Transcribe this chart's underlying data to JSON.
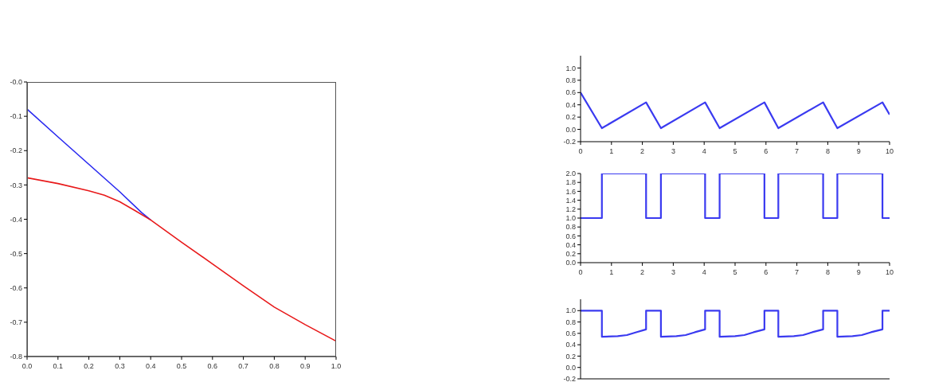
{
  "chart_data": [
    {
      "type": "line",
      "xlim": [
        0,
        1
      ],
      "xticks": [
        {
          "value": 0,
          "label": "0.0"
        },
        0.1,
        0.2,
        0.3,
        0.4,
        0.5,
        0.6,
        0.7,
        0.8,
        0.9,
        {
          "value": 1,
          "label": "1.0"
        }
      ],
      "ylim": [
        -0.8,
        0
      ],
      "yticks": [
        -0.8,
        -0.7,
        -0.6,
        -0.5,
        -0.4,
        -0.3,
        -0.2,
        -0.1,
        {
          "value": 0,
          "label": "-0.0"
        }
      ],
      "series": [
        {
          "color": "#2a2af0",
          "x": [
            0,
            0.1,
            0.2,
            0.3,
            0.37,
            0.4
          ],
          "values": [
            -0.079,
            -0.16,
            -0.24,
            -0.32,
            -0.38,
            -0.402
          ]
        },
        {
          "color": "#e8191a",
          "x": [
            0,
            0.1,
            0.2,
            0.25,
            0.3,
            0.35,
            0.4,
            0.5,
            0.6,
            0.7,
            0.8,
            0.9,
            1
          ],
          "values": [
            -0.279,
            -0.296,
            -0.317,
            -0.33,
            -0.349,
            -0.375,
            -0.402,
            -0.467,
            -0.53,
            -0.594,
            -0.656,
            -0.707,
            -0.755
          ]
        }
      ]
    },
    {
      "type": "line",
      "xlim": [
        0,
        10
      ],
      "xticks": [
        0,
        1,
        2,
        3,
        4,
        5,
        6,
        7,
        8,
        9,
        10
      ],
      "ylim": [
        -0.2,
        1.2
      ],
      "yticks": [
        -0.2,
        {
          "value": 0,
          "label": "0.0"
        },
        0.2,
        0.4,
        0.6,
        0.8,
        {
          "value": 1,
          "label": "1.0"
        }
      ],
      "series": [
        {
          "color": "#3a3af0",
          "x": [
            0,
            0.69,
            2.12,
            2.6,
            4.03,
            4.5,
            5.95,
            6.4,
            7.85,
            8.31,
            9.77,
            10
          ],
          "values": [
            0.6,
            0.02,
            0.44,
            0.02,
            0.44,
            0.02,
            0.44,
            0.02,
            0.44,
            0.02,
            0.44,
            0.24
          ]
        }
      ]
    },
    {
      "type": "step",
      "xlim": [
        0,
        10
      ],
      "xticks": [
        0,
        1,
        2,
        3,
        4,
        5,
        6,
        7,
        8,
        9,
        10
      ],
      "ylim": [
        0,
        2
      ],
      "yticks": [
        {
          "value": 0,
          "label": "0.0"
        },
        0.2,
        0.4,
        0.6,
        0.8,
        {
          "value": 1,
          "label": "1.0"
        },
        1.2,
        1.4,
        1.6,
        1.8,
        {
          "value": 2,
          "label": "2.0"
        }
      ],
      "series": [
        {
          "color": "#3a3af0",
          "x": [
            0,
            0.69,
            2.12,
            2.6,
            4.03,
            4.5,
            5.95,
            6.4,
            7.85,
            8.31,
            9.77,
            10
          ],
          "values": [
            1,
            2,
            1,
            2,
            1,
            2,
            1,
            2,
            1,
            2,
            1,
            1
          ]
        }
      ]
    },
    {
      "type": "line",
      "xlim": [
        0,
        10
      ],
      "xticks": [
        0,
        1,
        2,
        3,
        4,
        5,
        6,
        7,
        8,
        9,
        10
      ],
      "ylim": [
        -0.2,
        1.2
      ],
      "yticks": [
        -0.2,
        {
          "value": 0,
          "label": "0.0"
        },
        0.2,
        0.4,
        0.6,
        0.8,
        {
          "value": 1,
          "label": "1.0"
        }
      ],
      "tick_labels": "y",
      "series": [
        {
          "color": "#3a3af0",
          "x": [
            0,
            0.69,
            0.69,
            1.2,
            1.5,
            1.8,
            2.12,
            2.12,
            2.6,
            2.6,
            3.1,
            3.4,
            3.7,
            4.03,
            4.03,
            4.5,
            4.5,
            5.0,
            5.3,
            5.6,
            5.95,
            5.95,
            6.4,
            6.4,
            6.9,
            7.2,
            7.5,
            7.85,
            7.85,
            8.31,
            8.31,
            8.8,
            9.1,
            9.4,
            9.77,
            9.77,
            10
          ],
          "values": [
            1,
            1,
            0.54,
            0.55,
            0.57,
            0.62,
            0.67,
            1,
            1,
            0.54,
            0.55,
            0.57,
            0.62,
            0.67,
            1,
            1,
            0.54,
            0.55,
            0.57,
            0.62,
            0.67,
            1,
            1,
            0.54,
            0.55,
            0.57,
            0.62,
            0.67,
            1,
            1,
            0.54,
            0.55,
            0.57,
            0.62,
            0.67,
            1,
            1
          ]
        }
      ]
    }
  ]
}
